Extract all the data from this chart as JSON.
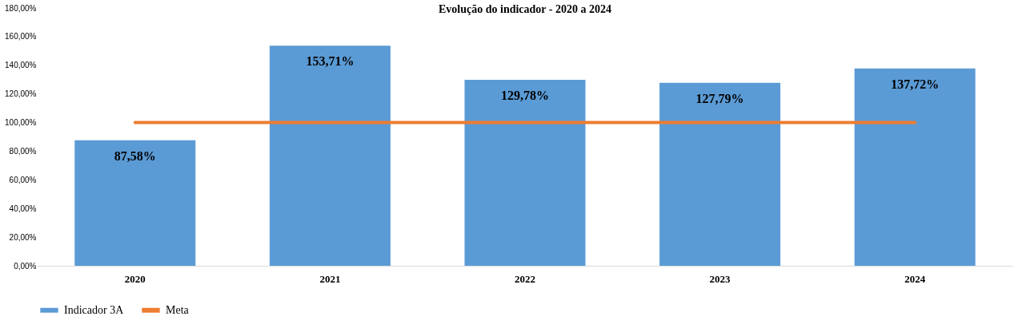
{
  "chart_data": {
    "type": "bar",
    "title": "Evolução do indicador - 2020 a 2024",
    "categories": [
      "2020",
      "2021",
      "2022",
      "2023",
      "2024"
    ],
    "series": [
      {
        "name": "Indicador 3A",
        "color": "#5b9bd5",
        "values": [
          87.58,
          153.71,
          129.78,
          127.79,
          137.72
        ],
        "value_labels": [
          "87,58%",
          "153,71%",
          "129,78%",
          "127,79%",
          "137,72%"
        ]
      },
      {
        "name": "Meta",
        "type": "line",
        "color": "#ed7d31",
        "values": [
          100,
          100,
          100,
          100,
          100
        ]
      }
    ],
    "ylim": [
      0,
      180
    ],
    "yticks": [
      {
        "value": 0,
        "label": "0,00%"
      },
      {
        "value": 20,
        "label": "20,00%"
      },
      {
        "value": 40,
        "label": "40,00%"
      },
      {
        "value": 60,
        "label": "60,00%"
      },
      {
        "value": 80,
        "label": "80,00%"
      },
      {
        "value": 100,
        "label": "100,00%"
      },
      {
        "value": 120,
        "label": "120,00%"
      },
      {
        "value": 140,
        "label": "140,00%"
      },
      {
        "value": 160,
        "label": "160,00%"
      },
      {
        "value": 180,
        "label": "180,00%"
      }
    ],
    "legend": "bottom"
  }
}
